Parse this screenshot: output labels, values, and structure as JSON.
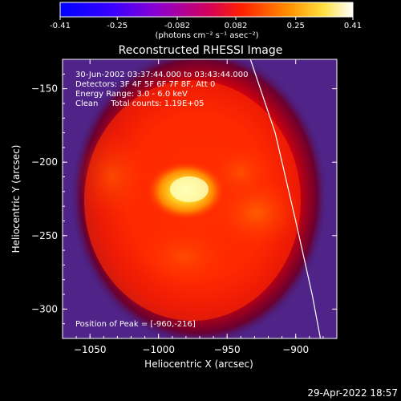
{
  "chart_data": {
    "type": "heatmap",
    "title": "Reconstructed RHESSI Image",
    "colorbar": {
      "ticks": [
        "-0.41",
        "-0.25",
        "-0.082",
        "0.082",
        "0.25",
        "0.41"
      ],
      "range": [
        -0.41,
        0.41
      ],
      "units": "(photons cm⁻² s⁻¹ asec⁻²)"
    },
    "xlabel": "Heliocentric X (arcsec)",
    "ylabel": "Heliocentric Y (arcsec)",
    "xlim": [
      -1070,
      -870
    ],
    "ylim": [
      -320,
      -130
    ],
    "xticks": [
      {
        "value": -1050,
        "label": "−1050"
      },
      {
        "value": -1000,
        "label": "−1000"
      },
      {
        "value": -950,
        "label": "−950"
      },
      {
        "value": -900,
        "label": "−900"
      }
    ],
    "yticks": [
      {
        "value": -150,
        "label": "−150"
      },
      {
        "value": -200,
        "label": "−200"
      },
      {
        "value": -250,
        "label": "−250"
      },
      {
        "value": -300,
        "label": "−300"
      }
    ],
    "annotations": [
      "30-Jun-2002 03:37:44.000 to 03:43:44.000",
      "Detectors: 3F 4F 5F 6F 7F 8F, Att 0",
      "Energy Range: 3.0 - 6.0 keV",
      "Clean     Total counts: 1.19E+05"
    ],
    "peak_label": "Position of Peak = [-960,-216]",
    "peak": [
      -960,
      -216
    ],
    "timestamp": "29-Apr-2022 18:57",
    "limb_line": [
      [
        -933,
        -130
      ],
      [
        -915,
        -180
      ],
      [
        -900,
        -240
      ],
      [
        -888,
        -290
      ],
      [
        -882,
        -320
      ]
    ]
  }
}
